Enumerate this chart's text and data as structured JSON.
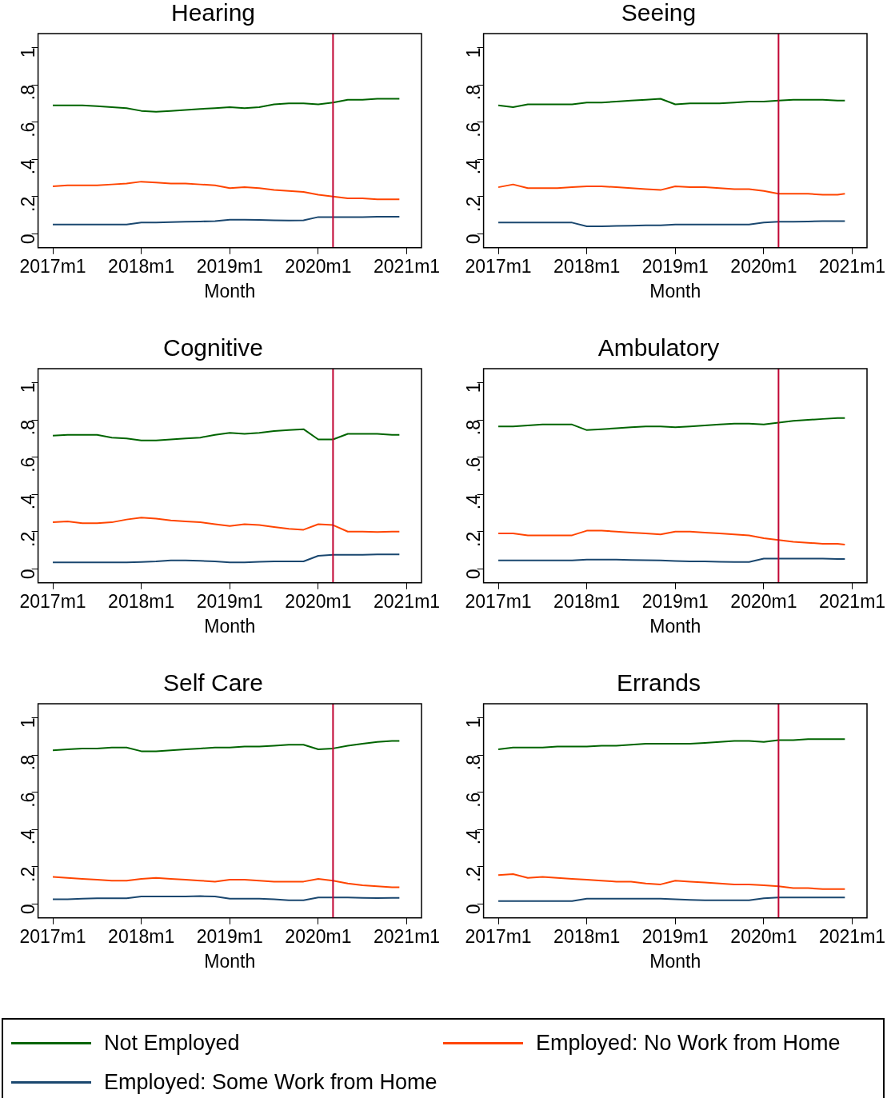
{
  "chart_data": [
    {
      "type": "line",
      "title": "Hearing",
      "xlabel": "Month",
      "grid": false,
      "legend": "bottom",
      "x": [
        "2017-01",
        "2017-03",
        "2017-05",
        "2017-07",
        "2017-09",
        "2017-11",
        "2018-01",
        "2018-03",
        "2018-05",
        "2018-07",
        "2018-09",
        "2018-11",
        "2019-01",
        "2019-03",
        "2019-05",
        "2019-07",
        "2019-09",
        "2019-11",
        "2020-01",
        "2020-03",
        "2020-05",
        "2020-07",
        "2020-09",
        "2020-11",
        "2020-12"
      ],
      "xlim": [
        "2016-11",
        "2021-03"
      ],
      "xticks": [
        {
          "value": "2017-01",
          "label": "2017m1"
        },
        {
          "value": "2018-01",
          "label": "2018m1"
        },
        {
          "value": "2019-01",
          "label": "2019m1"
        },
        {
          "value": "2020-01",
          "label": "2020m1"
        },
        {
          "value": "2021-01",
          "label": "2021m1"
        }
      ],
      "ylim": [
        -0.075,
        1.075
      ],
      "yticks": [
        {
          "value": 0,
          "label": "0"
        },
        {
          "value": 0.2,
          "label": ".2"
        },
        {
          "value": 0.4,
          "label": ".4"
        },
        {
          "value": 0.6,
          "label": ".6"
        },
        {
          "value": 0.8,
          "label": ".8"
        },
        {
          "value": 1,
          "label": "1"
        }
      ],
      "ref_lines": [
        {
          "axis": "x",
          "value": "2020-03",
          "color": "#c10534"
        }
      ],
      "series": [
        {
          "name": "Not Employed",
          "color": "#006400",
          "values": [
            0.69,
            0.69,
            0.69,
            0.685,
            0.68,
            0.675,
            0.66,
            0.655,
            0.66,
            0.665,
            0.67,
            0.675,
            0.68,
            0.675,
            0.68,
            0.695,
            0.7,
            0.7,
            0.695,
            0.705,
            0.72,
            0.72,
            0.725,
            0.725,
            0.725
          ]
        },
        {
          "name": "Employed: No Work from Home",
          "color": "#ff4500",
          "values": [
            0.255,
            0.26,
            0.26,
            0.26,
            0.265,
            0.27,
            0.28,
            0.275,
            0.27,
            0.27,
            0.265,
            0.26,
            0.245,
            0.25,
            0.245,
            0.235,
            0.23,
            0.225,
            0.21,
            0.2,
            0.19,
            0.19,
            0.185,
            0.185,
            0.185
          ]
        },
        {
          "name": "Employed: Some Work from Home",
          "color": "#1a476f",
          "values": [
            0.05,
            0.05,
            0.05,
            0.05,
            0.05,
            0.05,
            0.06,
            0.06,
            0.063,
            0.065,
            0.066,
            0.068,
            0.075,
            0.075,
            0.074,
            0.072,
            0.071,
            0.072,
            0.09,
            0.09,
            0.09,
            0.09,
            0.092,
            0.092,
            0.092
          ]
        }
      ]
    },
    {
      "type": "line",
      "title": "Seeing",
      "xlabel": "Month",
      "grid": false,
      "legend": "bottom",
      "x": [
        "2017-01",
        "2017-03",
        "2017-05",
        "2017-07",
        "2017-09",
        "2017-11",
        "2018-01",
        "2018-03",
        "2018-05",
        "2018-07",
        "2018-09",
        "2018-11",
        "2019-01",
        "2019-03",
        "2019-05",
        "2019-07",
        "2019-09",
        "2019-11",
        "2020-01",
        "2020-03",
        "2020-05",
        "2020-07",
        "2020-09",
        "2020-11",
        "2020-12"
      ],
      "xlim": [
        "2016-11",
        "2021-03"
      ],
      "xticks": [
        {
          "value": "2017-01",
          "label": "2017m1"
        },
        {
          "value": "2018-01",
          "label": "2018m1"
        },
        {
          "value": "2019-01",
          "label": "2019m1"
        },
        {
          "value": "2020-01",
          "label": "2020m1"
        },
        {
          "value": "2021-01",
          "label": "2021m1"
        }
      ],
      "ylim": [
        -0.075,
        1.075
      ],
      "yticks": [
        {
          "value": 0,
          "label": "0"
        },
        {
          "value": 0.2,
          "label": ".2"
        },
        {
          "value": 0.4,
          "label": ".4"
        },
        {
          "value": 0.6,
          "label": ".6"
        },
        {
          "value": 0.8,
          "label": ".8"
        },
        {
          "value": 1,
          "label": "1"
        }
      ],
      "ref_lines": [
        {
          "axis": "x",
          "value": "2020-03",
          "color": "#c10534"
        }
      ],
      "series": [
        {
          "name": "Not Employed",
          "color": "#006400",
          "values": [
            0.69,
            0.68,
            0.695,
            0.695,
            0.695,
            0.695,
            0.705,
            0.705,
            0.71,
            0.715,
            0.72,
            0.725,
            0.695,
            0.7,
            0.7,
            0.7,
            0.705,
            0.71,
            0.71,
            0.715,
            0.72,
            0.72,
            0.72,
            0.715,
            0.715
          ]
        },
        {
          "name": "Employed: No Work from Home",
          "color": "#ff4500",
          "values": [
            0.25,
            0.265,
            0.245,
            0.245,
            0.245,
            0.25,
            0.255,
            0.255,
            0.25,
            0.245,
            0.24,
            0.235,
            0.255,
            0.25,
            0.25,
            0.245,
            0.24,
            0.24,
            0.23,
            0.215,
            0.215,
            0.215,
            0.21,
            0.21,
            0.215
          ]
        },
        {
          "name": "Employed: Some Work from Home",
          "color": "#1a476f",
          "values": [
            0.06,
            0.06,
            0.06,
            0.06,
            0.06,
            0.06,
            0.04,
            0.04,
            0.042,
            0.043,
            0.045,
            0.045,
            0.05,
            0.05,
            0.05,
            0.05,
            0.05,
            0.05,
            0.06,
            0.065,
            0.065,
            0.066,
            0.068,
            0.068,
            0.068
          ]
        }
      ]
    },
    {
      "type": "line",
      "title": "Cognitive",
      "xlabel": "Month",
      "grid": false,
      "legend": "bottom",
      "x": [
        "2017-01",
        "2017-03",
        "2017-05",
        "2017-07",
        "2017-09",
        "2017-11",
        "2018-01",
        "2018-03",
        "2018-05",
        "2018-07",
        "2018-09",
        "2018-11",
        "2019-01",
        "2019-03",
        "2019-05",
        "2019-07",
        "2019-09",
        "2019-11",
        "2020-01",
        "2020-03",
        "2020-05",
        "2020-07",
        "2020-09",
        "2020-11",
        "2020-12"
      ],
      "xlim": [
        "2016-11",
        "2021-03"
      ],
      "xticks": [
        {
          "value": "2017-01",
          "label": "2017m1"
        },
        {
          "value": "2018-01",
          "label": "2018m1"
        },
        {
          "value": "2019-01",
          "label": "2019m1"
        },
        {
          "value": "2020-01",
          "label": "2020m1"
        },
        {
          "value": "2021-01",
          "label": "2021m1"
        }
      ],
      "ylim": [
        -0.075,
        1.075
      ],
      "yticks": [
        {
          "value": 0,
          "label": "0"
        },
        {
          "value": 0.2,
          "label": ".2"
        },
        {
          "value": 0.4,
          "label": ".4"
        },
        {
          "value": 0.6,
          "label": ".6"
        },
        {
          "value": 0.8,
          "label": ".8"
        },
        {
          "value": 1,
          "label": "1"
        }
      ],
      "ref_lines": [
        {
          "axis": "x",
          "value": "2020-03",
          "color": "#c10534"
        }
      ],
      "series": [
        {
          "name": "Not Employed",
          "color": "#006400",
          "values": [
            0.715,
            0.72,
            0.72,
            0.72,
            0.705,
            0.7,
            0.69,
            0.69,
            0.695,
            0.7,
            0.705,
            0.72,
            0.73,
            0.725,
            0.73,
            0.74,
            0.745,
            0.75,
            0.695,
            0.695,
            0.725,
            0.725,
            0.725,
            0.72,
            0.72
          ]
        },
        {
          "name": "Employed: No Work from Home",
          "color": "#ff4500",
          "values": [
            0.25,
            0.255,
            0.245,
            0.245,
            0.25,
            0.265,
            0.275,
            0.27,
            0.26,
            0.255,
            0.25,
            0.24,
            0.23,
            0.24,
            0.235,
            0.225,
            0.215,
            0.21,
            0.24,
            0.235,
            0.2,
            0.2,
            0.198,
            0.2,
            0.2
          ]
        },
        {
          "name": "Employed: Some Work from Home",
          "color": "#1a476f",
          "values": [
            0.035,
            0.035,
            0.035,
            0.035,
            0.035,
            0.035,
            0.037,
            0.04,
            0.045,
            0.045,
            0.043,
            0.04,
            0.035,
            0.035,
            0.038,
            0.04,
            0.04,
            0.04,
            0.07,
            0.075,
            0.075,
            0.075,
            0.078,
            0.078,
            0.078
          ]
        }
      ]
    },
    {
      "type": "line",
      "title": "Ambulatory",
      "xlabel": "Month",
      "grid": false,
      "legend": "bottom",
      "x": [
        "2017-01",
        "2017-03",
        "2017-05",
        "2017-07",
        "2017-09",
        "2017-11",
        "2018-01",
        "2018-03",
        "2018-05",
        "2018-07",
        "2018-09",
        "2018-11",
        "2019-01",
        "2019-03",
        "2019-05",
        "2019-07",
        "2019-09",
        "2019-11",
        "2020-01",
        "2020-03",
        "2020-05",
        "2020-07",
        "2020-09",
        "2020-11",
        "2020-12"
      ],
      "xlim": [
        "2016-11",
        "2021-03"
      ],
      "xticks": [
        {
          "value": "2017-01",
          "label": "2017m1"
        },
        {
          "value": "2018-01",
          "label": "2018m1"
        },
        {
          "value": "2019-01",
          "label": "2019m1"
        },
        {
          "value": "2020-01",
          "label": "2020m1"
        },
        {
          "value": "2021-01",
          "label": "2021m1"
        }
      ],
      "ylim": [
        -0.075,
        1.075
      ],
      "yticks": [
        {
          "value": 0,
          "label": "0"
        },
        {
          "value": 0.2,
          "label": ".2"
        },
        {
          "value": 0.4,
          "label": ".4"
        },
        {
          "value": 0.6,
          "label": ".6"
        },
        {
          "value": 0.8,
          "label": ".8"
        },
        {
          "value": 1,
          "label": "1"
        }
      ],
      "ref_lines": [
        {
          "axis": "x",
          "value": "2020-03",
          "color": "#c10534"
        }
      ],
      "series": [
        {
          "name": "Not Employed",
          "color": "#006400",
          "values": [
            0.765,
            0.765,
            0.77,
            0.775,
            0.775,
            0.775,
            0.745,
            0.75,
            0.755,
            0.76,
            0.765,
            0.765,
            0.76,
            0.765,
            0.77,
            0.775,
            0.78,
            0.78,
            0.775,
            0.785,
            0.795,
            0.8,
            0.805,
            0.81,
            0.81
          ]
        },
        {
          "name": "Employed: No Work from Home",
          "color": "#ff4500",
          "values": [
            0.19,
            0.19,
            0.18,
            0.18,
            0.18,
            0.18,
            0.205,
            0.205,
            0.2,
            0.195,
            0.19,
            0.185,
            0.2,
            0.2,
            0.195,
            0.19,
            0.185,
            0.18,
            0.165,
            0.155,
            0.145,
            0.14,
            0.135,
            0.135,
            0.13
          ]
        },
        {
          "name": "Employed: Some Work from Home",
          "color": "#1a476f",
          "values": [
            0.045,
            0.045,
            0.045,
            0.045,
            0.045,
            0.045,
            0.05,
            0.05,
            0.05,
            0.048,
            0.047,
            0.045,
            0.042,
            0.04,
            0.04,
            0.038,
            0.037,
            0.037,
            0.055,
            0.055,
            0.055,
            0.055,
            0.055,
            0.053,
            0.053
          ]
        }
      ]
    },
    {
      "type": "line",
      "title": "Self Care",
      "xlabel": "Month",
      "grid": false,
      "legend": "bottom",
      "x": [
        "2017-01",
        "2017-03",
        "2017-05",
        "2017-07",
        "2017-09",
        "2017-11",
        "2018-01",
        "2018-03",
        "2018-05",
        "2018-07",
        "2018-09",
        "2018-11",
        "2019-01",
        "2019-03",
        "2019-05",
        "2019-07",
        "2019-09",
        "2019-11",
        "2020-01",
        "2020-03",
        "2020-05",
        "2020-07",
        "2020-09",
        "2020-11",
        "2020-12"
      ],
      "xlim": [
        "2016-11",
        "2021-03"
      ],
      "xticks": [
        {
          "value": "2017-01",
          "label": "2017m1"
        },
        {
          "value": "2018-01",
          "label": "2018m1"
        },
        {
          "value": "2019-01",
          "label": "2019m1"
        },
        {
          "value": "2020-01",
          "label": "2020m1"
        },
        {
          "value": "2021-01",
          "label": "2021m1"
        }
      ],
      "ylim": [
        -0.075,
        1.075
      ],
      "yticks": [
        {
          "value": 0,
          "label": "0"
        },
        {
          "value": 0.2,
          "label": ".2"
        },
        {
          "value": 0.4,
          "label": ".4"
        },
        {
          "value": 0.6,
          "label": ".6"
        },
        {
          "value": 0.8,
          "label": ".8"
        },
        {
          "value": 1,
          "label": "1"
        }
      ],
      "ref_lines": [
        {
          "axis": "x",
          "value": "2020-03",
          "color": "#c10534"
        }
      ],
      "series": [
        {
          "name": "Not Employed",
          "color": "#006400",
          "values": [
            0.825,
            0.83,
            0.835,
            0.835,
            0.84,
            0.84,
            0.82,
            0.82,
            0.825,
            0.83,
            0.835,
            0.84,
            0.84,
            0.845,
            0.845,
            0.85,
            0.855,
            0.855,
            0.83,
            0.835,
            0.85,
            0.86,
            0.87,
            0.875,
            0.875
          ]
        },
        {
          "name": "Employed: No Work from Home",
          "color": "#ff4500",
          "values": [
            0.145,
            0.14,
            0.135,
            0.13,
            0.125,
            0.125,
            0.135,
            0.14,
            0.135,
            0.13,
            0.125,
            0.12,
            0.13,
            0.13,
            0.125,
            0.12,
            0.12,
            0.12,
            0.135,
            0.125,
            0.11,
            0.1,
            0.095,
            0.09,
            0.09
          ]
        },
        {
          "name": "Employed: Some Work from Home",
          "color": "#1a476f",
          "values": [
            0.025,
            0.025,
            0.028,
            0.03,
            0.03,
            0.03,
            0.04,
            0.04,
            0.04,
            0.04,
            0.042,
            0.04,
            0.028,
            0.028,
            0.028,
            0.025,
            0.02,
            0.02,
            0.035,
            0.035,
            0.035,
            0.033,
            0.032,
            0.033,
            0.033
          ]
        }
      ]
    },
    {
      "type": "line",
      "title": "Errands",
      "xlabel": "Month",
      "grid": false,
      "legend": "bottom",
      "x": [
        "2017-01",
        "2017-03",
        "2017-05",
        "2017-07",
        "2017-09",
        "2017-11",
        "2018-01",
        "2018-03",
        "2018-05",
        "2018-07",
        "2018-09",
        "2018-11",
        "2019-01",
        "2019-03",
        "2019-05",
        "2019-07",
        "2019-09",
        "2019-11",
        "2020-01",
        "2020-03",
        "2020-05",
        "2020-07",
        "2020-09",
        "2020-11",
        "2020-12"
      ],
      "xlim": [
        "2016-11",
        "2021-03"
      ],
      "xticks": [
        {
          "value": "2017-01",
          "label": "2017m1"
        },
        {
          "value": "2018-01",
          "label": "2018m1"
        },
        {
          "value": "2019-01",
          "label": "2019m1"
        },
        {
          "value": "2020-01",
          "label": "2020m1"
        },
        {
          "value": "2021-01",
          "label": "2021m1"
        }
      ],
      "ylim": [
        -0.075,
        1.075
      ],
      "yticks": [
        {
          "value": 0,
          "label": "0"
        },
        {
          "value": 0.2,
          "label": ".2"
        },
        {
          "value": 0.4,
          "label": ".4"
        },
        {
          "value": 0.6,
          "label": ".6"
        },
        {
          "value": 0.8,
          "label": ".8"
        },
        {
          "value": 1,
          "label": "1"
        }
      ],
      "ref_lines": [
        {
          "axis": "x",
          "value": "2020-03",
          "color": "#c10534"
        }
      ],
      "series": [
        {
          "name": "Not Employed",
          "color": "#006400",
          "values": [
            0.83,
            0.84,
            0.84,
            0.84,
            0.845,
            0.845,
            0.845,
            0.85,
            0.85,
            0.855,
            0.86,
            0.86,
            0.86,
            0.86,
            0.865,
            0.87,
            0.875,
            0.875,
            0.87,
            0.88,
            0.88,
            0.885,
            0.885,
            0.885,
            0.885
          ]
        },
        {
          "name": "Employed: No Work from Home",
          "color": "#ff4500",
          "values": [
            0.155,
            0.16,
            0.14,
            0.145,
            0.14,
            0.135,
            0.13,
            0.125,
            0.12,
            0.12,
            0.11,
            0.105,
            0.125,
            0.12,
            0.115,
            0.11,
            0.105,
            0.105,
            0.1,
            0.095,
            0.085,
            0.085,
            0.08,
            0.08,
            0.08
          ]
        },
        {
          "name": "Employed: Some Work from Home",
          "color": "#1a476f",
          "values": [
            0.015,
            0.015,
            0.015,
            0.015,
            0.015,
            0.015,
            0.028,
            0.028,
            0.028,
            0.028,
            0.028,
            0.028,
            0.025,
            0.022,
            0.02,
            0.02,
            0.02,
            0.02,
            0.03,
            0.035,
            0.035,
            0.035,
            0.035,
            0.035,
            0.035
          ]
        }
      ]
    }
  ]
}
